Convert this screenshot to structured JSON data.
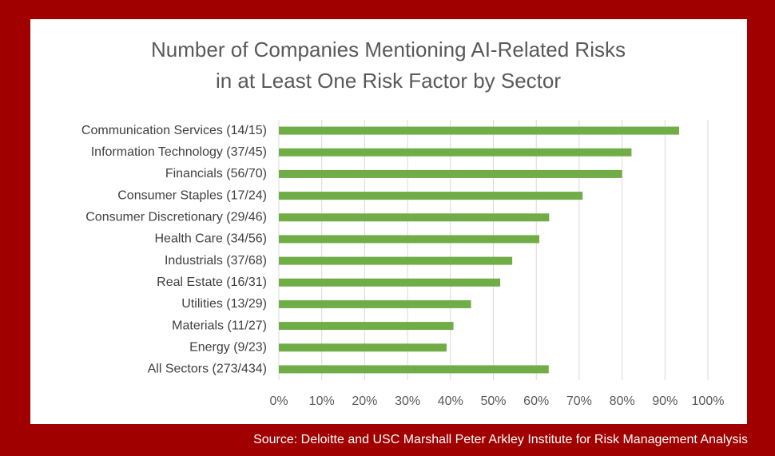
{
  "chart_data": {
    "type": "bar",
    "orientation": "horizontal",
    "title": [
      "Number of Companies Mentioning AI-Related Risks",
      "in at Least One Risk Factor by Sector"
    ],
    "categories": [
      "Communication Services (14/15)",
      "Information Technology (37/45)",
      "Financials (56/70)",
      "Consumer Staples (17/24)",
      "Consumer Discretionary (29/46)",
      "Health Care (34/56)",
      "Industrials (37/68)",
      "Real Estate (16/31)",
      "Utilities (13/29)",
      "Materials (11/27)",
      "Energy (9/23)",
      "All Sectors (273/434)"
    ],
    "values": [
      93.3,
      82.2,
      80.0,
      70.8,
      63.0,
      60.7,
      54.4,
      51.6,
      44.8,
      40.7,
      39.1,
      62.9
    ],
    "color": "#70ad47",
    "xlim": [
      0,
      100
    ],
    "xticks": [
      {
        "value": 0,
        "label": "0%"
      },
      {
        "value": 10,
        "label": "10%"
      },
      {
        "value": 20,
        "label": "20%"
      },
      {
        "value": 30,
        "label": "30%"
      },
      {
        "value": 40,
        "label": "40%"
      },
      {
        "value": 50,
        "label": "50%"
      },
      {
        "value": 60,
        "label": "60%"
      },
      {
        "value": 70,
        "label": "70%"
      },
      {
        "value": 80,
        "label": "80%"
      },
      {
        "value": 90,
        "label": "90%"
      },
      {
        "value": 100,
        "label": "100%"
      }
    ],
    "grid": true,
    "source": "Source: Deloitte and USC Marshall Peter Arkley Institute for Risk Management Analysis"
  }
}
